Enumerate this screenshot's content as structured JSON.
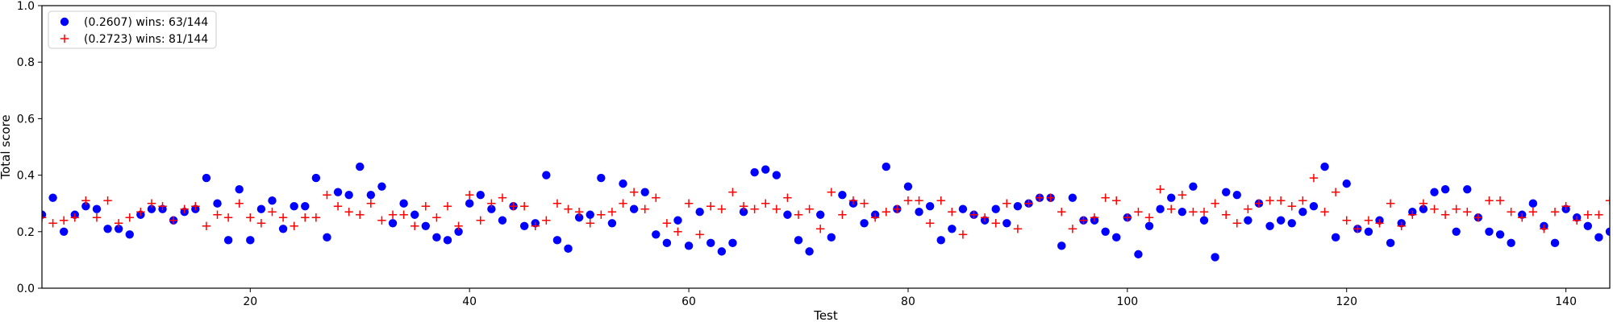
{
  "chart_data": {
    "type": "scatter",
    "xlabel": "Test",
    "ylabel": "Total score",
    "xlim": [
      1,
      144
    ],
    "ylim": [
      0.0,
      1.0
    ],
    "x_ticks": [
      20,
      40,
      60,
      80,
      100,
      120,
      140
    ],
    "x_tick_labels": [
      "20",
      "40",
      "60",
      "80",
      "100",
      "120",
      "140"
    ],
    "y_ticks": [
      0.0,
      0.2,
      0.4,
      0.6,
      0.8,
      1.0
    ],
    "y_tick_labels": [
      "0.0",
      "0.2",
      "0.4",
      "0.6",
      "0.8",
      "1.0"
    ],
    "grid": false,
    "legend_position": "top-left",
    "series": [
      {
        "name": "(0.2607) wins: 63/144",
        "marker": "circle",
        "color": "#0000ff",
        "x": [
          1,
          2,
          3,
          4,
          5,
          6,
          7,
          8,
          9,
          10,
          11,
          12,
          13,
          14,
          15,
          16,
          17,
          18,
          19,
          20,
          21,
          22,
          23,
          24,
          25,
          26,
          27,
          28,
          29,
          30,
          31,
          32,
          33,
          34,
          35,
          36,
          37,
          38,
          39,
          40,
          41,
          42,
          43,
          44,
          45,
          46,
          47,
          48,
          49,
          50,
          51,
          52,
          53,
          54,
          55,
          56,
          57,
          58,
          59,
          60,
          61,
          62,
          63,
          64,
          65,
          66,
          67,
          68,
          69,
          70,
          71,
          72,
          73,
          74,
          75,
          76,
          77,
          78,
          79,
          80,
          81,
          82,
          83,
          84,
          85,
          86,
          87,
          88,
          89,
          90,
          91,
          92,
          93,
          94,
          95,
          96,
          97,
          98,
          99,
          100,
          101,
          102,
          103,
          104,
          105,
          106,
          107,
          108,
          109,
          110,
          111,
          112,
          113,
          114,
          115,
          116,
          117,
          118,
          119,
          120,
          121,
          122,
          123,
          124,
          125,
          126,
          127,
          128,
          129,
          130,
          131,
          132,
          133,
          134,
          135,
          136,
          137,
          138,
          139,
          140,
          141,
          142,
          143,
          144
        ],
        "y": [
          0.26,
          0.32,
          0.2,
          0.26,
          0.29,
          0.28,
          0.21,
          0.21,
          0.19,
          0.26,
          0.28,
          0.28,
          0.24,
          0.27,
          0.28,
          0.39,
          0.3,
          0.17,
          0.35,
          0.17,
          0.28,
          0.31,
          0.21,
          0.29,
          0.29,
          0.39,
          0.18,
          0.34,
          0.33,
          0.43,
          0.33,
          0.36,
          0.23,
          0.3,
          0.26,
          0.22,
          0.18,
          0.17,
          0.2,
          0.3,
          0.33,
          0.28,
          0.24,
          0.29,
          0.22,
          0.23,
          0.4,
          0.17,
          0.14,
          0.25,
          0.26,
          0.39,
          0.23,
          0.37,
          0.28,
          0.34,
          0.19,
          0.16,
          0.24,
          0.15,
          0.27,
          0.16,
          0.13,
          0.16,
          0.27,
          0.41,
          0.42,
          0.4,
          0.26,
          0.17,
          0.13,
          0.26,
          0.18,
          0.33,
          0.3,
          0.23,
          0.26,
          0.43,
          0.28,
          0.36,
          0.27,
          0.29,
          0.17,
          0.21,
          0.28,
          0.26,
          0.24,
          0.28,
          0.23,
          0.29,
          0.3,
          0.32,
          0.32,
          0.15,
          0.32,
          0.24,
          0.24,
          0.2,
          0.18,
          0.25,
          0.12,
          0.22,
          0.28,
          0.32,
          0.27,
          0.36,
          0.24,
          0.11,
          0.34,
          0.33,
          0.24,
          0.3,
          0.22,
          0.24,
          0.23,
          0.27,
          0.29,
          0.43,
          0.18,
          0.37,
          0.21,
          0.2,
          0.24,
          0.16,
          0.23,
          0.27,
          0.28,
          0.34,
          0.35,
          0.2,
          0.35,
          0.25,
          0.2,
          0.19,
          0.16,
          0.26,
          0.3,
          0.22,
          0.16,
          0.28,
          0.25,
          0.22,
          0.18,
          0.2
        ]
      },
      {
        "name": "(0.2723) wins: 81/144",
        "marker": "plus",
        "color": "#ff0000",
        "x": [
          1,
          2,
          3,
          4,
          5,
          6,
          7,
          8,
          9,
          10,
          11,
          12,
          13,
          14,
          15,
          16,
          17,
          18,
          19,
          20,
          21,
          22,
          23,
          24,
          25,
          26,
          27,
          28,
          29,
          30,
          31,
          32,
          33,
          34,
          35,
          36,
          37,
          38,
          39,
          40,
          41,
          42,
          43,
          44,
          45,
          46,
          47,
          48,
          49,
          50,
          51,
          52,
          53,
          54,
          55,
          56,
          57,
          58,
          59,
          60,
          61,
          62,
          63,
          64,
          65,
          66,
          67,
          68,
          69,
          70,
          71,
          72,
          73,
          74,
          75,
          76,
          77,
          78,
          79,
          80,
          81,
          82,
          83,
          84,
          85,
          86,
          87,
          88,
          89,
          90,
          91,
          92,
          93,
          94,
          95,
          96,
          97,
          98,
          99,
          100,
          101,
          102,
          103,
          104,
          105,
          106,
          107,
          108,
          109,
          110,
          111,
          112,
          113,
          114,
          115,
          116,
          117,
          118,
          119,
          120,
          121,
          122,
          123,
          124,
          125,
          126,
          127,
          128,
          129,
          130,
          131,
          132,
          133,
          134,
          135,
          136,
          137,
          138,
          139,
          140,
          141,
          142,
          143,
          144
        ],
        "y": [
          0.25,
          0.23,
          0.24,
          0.25,
          0.31,
          0.25,
          0.31,
          0.23,
          0.25,
          0.27,
          0.3,
          0.29,
          0.24,
          0.28,
          0.29,
          0.22,
          0.26,
          0.25,
          0.3,
          0.25,
          0.23,
          0.27,
          0.25,
          0.22,
          0.25,
          0.25,
          0.33,
          0.29,
          0.27,
          0.26,
          0.3,
          0.24,
          0.26,
          0.26,
          0.22,
          0.29,
          0.25,
          0.29,
          0.22,
          0.33,
          0.24,
          0.3,
          0.32,
          0.29,
          0.29,
          0.22,
          0.24,
          0.3,
          0.28,
          0.27,
          0.23,
          0.26,
          0.27,
          0.3,
          0.34,
          0.28,
          0.32,
          0.23,
          0.2,
          0.3,
          0.19,
          0.29,
          0.28,
          0.34,
          0.29,
          0.28,
          0.3,
          0.28,
          0.32,
          0.26,
          0.28,
          0.21,
          0.34,
          0.26,
          0.31,
          0.3,
          0.25,
          0.27,
          0.28,
          0.31,
          0.31,
          0.23,
          0.31,
          0.27,
          0.19,
          0.26,
          0.25,
          0.23,
          0.3,
          0.21,
          0.3,
          0.32,
          0.32,
          0.27,
          0.21,
          0.24,
          0.25,
          0.32,
          0.31,
          0.25,
          0.27,
          0.25,
          0.35,
          0.28,
          0.33,
          0.27,
          0.27,
          0.3,
          0.26,
          0.23,
          0.28,
          0.3,
          0.31,
          0.31,
          0.29,
          0.31,
          0.39,
          0.27,
          0.34,
          0.24,
          0.21,
          0.24,
          0.23,
          0.3,
          0.22,
          0.26,
          0.3,
          0.28,
          0.26,
          0.28,
          0.27,
          0.25,
          0.31,
          0.31,
          0.27,
          0.25,
          0.27,
          0.21,
          0.27,
          0.29,
          0.24,
          0.26,
          0.26,
          0.31
        ]
      }
    ]
  }
}
